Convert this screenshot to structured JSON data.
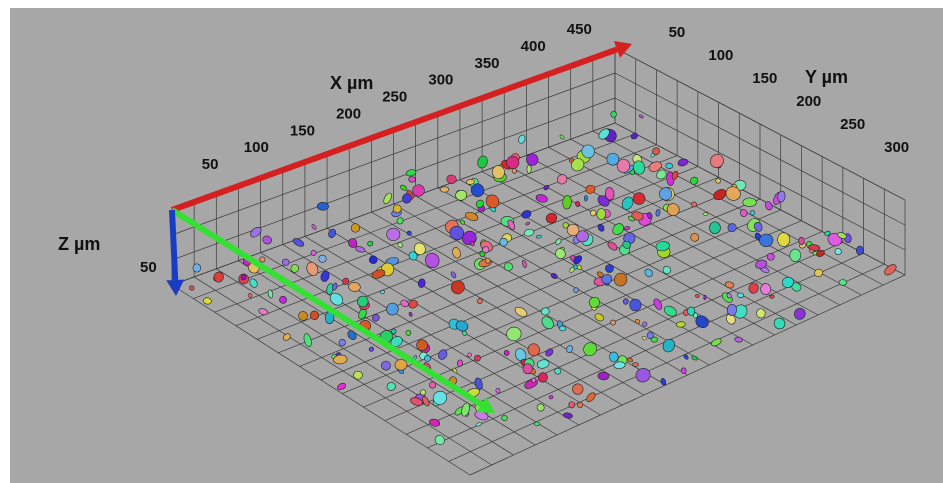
{
  "axes": {
    "x": {
      "label": "X µm",
      "ticks": [
        "50",
        "100",
        "150",
        "200",
        "250",
        "300",
        "350",
        "400",
        "450"
      ]
    },
    "y": {
      "label": "Y µm",
      "ticks": [
        "50",
        "100",
        "150",
        "200",
        "250",
        "300"
      ]
    },
    "z": {
      "label": "Z µm",
      "ticks": [
        "50"
      ]
    }
  }
}
